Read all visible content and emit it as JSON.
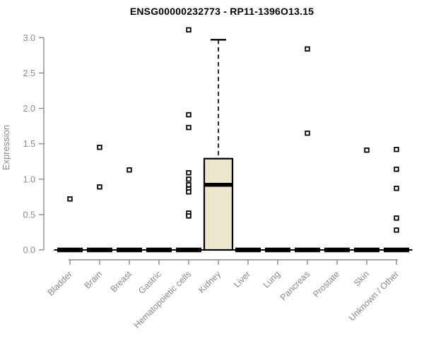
{
  "window": {
    "kind": "statistics-plot",
    "background": "#ffffff"
  },
  "chart_data": {
    "type": "boxplot",
    "title": "ENSG00000232773 - RP11-1396O13.15",
    "xlabel": "",
    "ylabel": "Expression",
    "ylim": [
      0.0,
      3.0
    ],
    "yticks": [
      "0.0",
      "0.5",
      "1.0",
      "1.5",
      "2.0",
      "2.5",
      "3.0"
    ],
    "grid": false,
    "legend": "none",
    "categories": [
      "Bladder",
      "Brain",
      "Breast",
      "Gastric",
      "Hematopoietic cells",
      "Kidney",
      "Liver",
      "Lung",
      "Pancreas",
      "Prostate",
      "Skin",
      "Unknown / Other"
    ],
    "boxes": [
      {
        "category": "Bladder",
        "q1": 0,
        "median": 0,
        "q3": 0,
        "whisker_low": 0,
        "whisker_high": 0,
        "outliers": [
          0.72
        ]
      },
      {
        "category": "Brain",
        "q1": 0,
        "median": 0,
        "q3": 0,
        "whisker_low": 0,
        "whisker_high": 0,
        "outliers": [
          1.45,
          0.89
        ]
      },
      {
        "category": "Breast",
        "q1": 0,
        "median": 0,
        "q3": 0,
        "whisker_low": 0,
        "whisker_high": 0,
        "outliers": [
          1.13
        ]
      },
      {
        "category": "Gastric",
        "q1": 0,
        "median": 0,
        "q3": 0,
        "whisker_low": 0,
        "whisker_high": 0,
        "outliers": []
      },
      {
        "category": "Hematopoietic cells",
        "q1": 0,
        "median": 0,
        "q3": 0,
        "whisker_low": 0,
        "whisker_high": 0,
        "outliers": [
          3.11,
          1.91,
          1.73,
          1.09,
          1.0,
          0.92,
          0.86,
          0.82,
          0.52,
          0.48
        ]
      },
      {
        "category": "Kidney",
        "q1": 0,
        "median": 0.92,
        "q3": 1.29,
        "whisker_low": 0,
        "whisker_high": 2.97,
        "outliers": []
      },
      {
        "category": "Liver",
        "q1": 0,
        "median": 0,
        "q3": 0,
        "whisker_low": 0,
        "whisker_high": 0,
        "outliers": []
      },
      {
        "category": "Lung",
        "q1": 0,
        "median": 0,
        "q3": 0,
        "whisker_low": 0,
        "whisker_high": 0,
        "outliers": []
      },
      {
        "category": "Pancreas",
        "q1": 0,
        "median": 0,
        "q3": 0,
        "whisker_low": 0,
        "whisker_high": 0,
        "outliers": [
          2.84,
          1.65
        ]
      },
      {
        "category": "Prostate",
        "q1": 0,
        "median": 0,
        "q3": 0,
        "whisker_low": 0,
        "whisker_high": 0,
        "outliers": []
      },
      {
        "category": "Skin",
        "q1": 0,
        "median": 0,
        "q3": 0,
        "whisker_low": 0,
        "whisker_high": 0,
        "outliers": [
          1.41
        ]
      },
      {
        "category": "Unknown / Other",
        "q1": 0,
        "median": 0,
        "q3": 0,
        "whisker_low": 0,
        "whisker_high": 0,
        "outliers": [
          1.42,
          1.14,
          0.87,
          0.45,
          0.28
        ]
      }
    ],
    "colors": {
      "box_fill": "#ece7cc",
      "box_border": "#000000",
      "median": "#000000",
      "whisker": "#000000",
      "outlier_stroke": "#000000",
      "outlier_fill": "#ffffff",
      "axis": "#8a8a8a",
      "tick_label": "#8a8a8a",
      "title": "#000000"
    }
  }
}
